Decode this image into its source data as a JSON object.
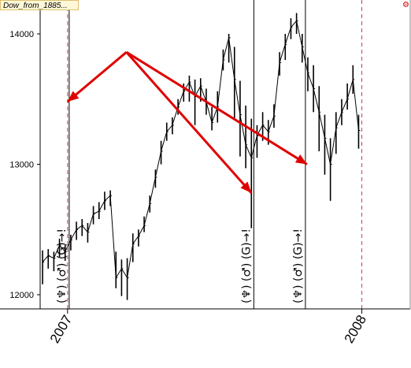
{
  "header": {
    "symbol_label": "Dow_from_1885...",
    "corner_icon": "gear-icon"
  },
  "chart_data": {
    "type": "line",
    "title": "",
    "xlabel": "",
    "ylabel": "",
    "ylim": [
      11890,
      14180
    ],
    "yticks": [
      12000,
      13000,
      14000
    ],
    "xdomain": [
      "2006-11-28",
      "2008-03-01"
    ],
    "xticks": [
      {
        "date": "2007-01-01",
        "label": "2007"
      },
      {
        "date": "2008-01-01",
        "label": "2008"
      }
    ],
    "series": [
      {
        "x": [
          "2006-12-01",
          "2006-12-08",
          "2006-12-15",
          "2006-12-22",
          "2006-12-29",
          "2007-01-05",
          "2007-01-12",
          "2007-01-19",
          "2007-01-26",
          "2007-02-02",
          "2007-02-09",
          "2007-02-16",
          "2007-02-23",
          "2007-03-02",
          "2007-03-09",
          "2007-03-16",
          "2007-03-23",
          "2007-03-30",
          "2007-04-06",
          "2007-04-13",
          "2007-04-20",
          "2007-04-27",
          "2007-05-04",
          "2007-05-11",
          "2007-05-18",
          "2007-05-25",
          "2007-06-01",
          "2007-06-08",
          "2007-06-15",
          "2007-06-22",
          "2007-06-29",
          "2007-07-06",
          "2007-07-13",
          "2007-07-20",
          "2007-07-27",
          "2007-08-03",
          "2007-08-10",
          "2007-08-17",
          "2007-08-24",
          "2007-08-31",
          "2007-09-07",
          "2007-09-14",
          "2007-09-21",
          "2007-09-28",
          "2007-10-05",
          "2007-10-12",
          "2007-10-19",
          "2007-10-26",
          "2007-11-02",
          "2007-11-09",
          "2007-11-16",
          "2007-11-23",
          "2007-11-30",
          "2007-12-07",
          "2007-12-14",
          "2007-12-21",
          "2007-12-28"
        ],
        "close": [
          12250,
          12300,
          12280,
          12380,
          12330,
          12420,
          12500,
          12530,
          12480,
          12620,
          12640,
          12720,
          12760,
          12130,
          12200,
          12130,
          12390,
          12450,
          12530,
          12700,
          12900,
          13100,
          13250,
          13300,
          13440,
          13560,
          13630,
          13520,
          13600,
          13480,
          13320,
          13440,
          13800,
          13970,
          13650,
          13380,
          13150,
          13050,
          13220,
          13300,
          13250,
          13370,
          13780,
          13920,
          14050,
          14100,
          13900,
          13700,
          13580,
          13400,
          13200,
          13000,
          13280,
          13400,
          13500,
          13650,
          13260
        ],
        "high": [
          12340,
          12350,
          12330,
          12430,
          12380,
          12460,
          12560,
          12580,
          12550,
          12680,
          12710,
          12790,
          12800,
          12330,
          12270,
          12280,
          12470,
          12500,
          12600,
          12760,
          12960,
          13180,
          13320,
          13360,
          13500,
          13620,
          13680,
          13650,
          13660,
          13580,
          13440,
          13560,
          13880,
          14000,
          13900,
          13640,
          13450,
          13350,
          13300,
          13400,
          13340,
          13460,
          13860,
          14000,
          14120,
          14160,
          14000,
          13820,
          13760,
          13600,
          13380,
          13200,
          13400,
          13500,
          13620,
          13760,
          13380
        ],
        "low": [
          12080,
          12200,
          12180,
          12290,
          12260,
          12340,
          12420,
          12450,
          12400,
          12540,
          12580,
          12650,
          12680,
          12050,
          11990,
          11960,
          12250,
          12370,
          12480,
          12630,
          12820,
          13000,
          13180,
          13230,
          13380,
          13480,
          13480,
          13300,
          13480,
          13380,
          13260,
          13320,
          13720,
          13780,
          13350,
          13060,
          12970,
          12510,
          13050,
          13180,
          13150,
          13280,
          13680,
          13800,
          13960,
          14000,
          13780,
          13560,
          13400,
          13100,
          12920,
          12720,
          13080,
          13300,
          13420,
          13540,
          13120
        ]
      }
    ],
    "event_lines": [
      {
        "date": "2007-01-01",
        "style": "dashed",
        "color": "#d04040"
      },
      {
        "date": "2007-01-03",
        "style": "solid",
        "color": "#000000",
        "glyphs": "(♆) (♂) (G)→!"
      },
      {
        "date": "2007-08-20",
        "style": "solid",
        "color": "#000000",
        "glyphs": "(♆) (♂) (G)→!"
      },
      {
        "date": "2007-10-23",
        "style": "solid",
        "color": "#000000",
        "glyphs": "(♆) (♂) (G)→!"
      },
      {
        "date": "2008-01-01",
        "style": "dashed",
        "color": "#d04040"
      }
    ],
    "arrows": [
      {
        "from": [
          "2007-03-15",
          13860
        ],
        "to": [
          "2007-01-01",
          13480
        ]
      },
      {
        "from": [
          "2007-03-15",
          13860
        ],
        "to": [
          "2007-08-17",
          12780
        ]
      },
      {
        "from": [
          "2007-03-15",
          13860
        ],
        "to": [
          "2007-10-25",
          13000
        ]
      }
    ],
    "colors": {
      "price": "#000000",
      "arrow": "#e00000",
      "event_line": "#000000",
      "year_line": "#d04040"
    }
  }
}
